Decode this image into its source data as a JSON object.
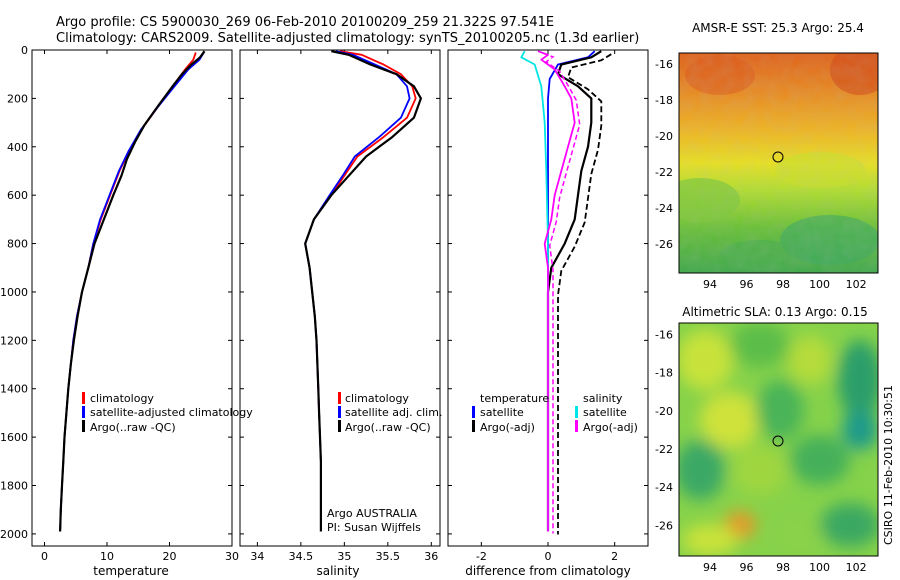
{
  "header": {
    "line1": "Argo profile: CS 5900030_269 06-Feb-2010 20100209_259 21.322S 97.541E",
    "line2": "Climatology: CARS2009. Satellite-adjusted climatology: synTS_20100205.nc (1.3d earlier)"
  },
  "side_label": "CSIRO 11-Feb-2010 10:30:51",
  "colors": {
    "climatology": "#ff0000",
    "satellite": "#0000ff",
    "argo": "#000000",
    "salinity_satellite": "#00e5e5",
    "salinity_argo": "#ff00ff"
  },
  "chart_data": [
    {
      "type": "line",
      "id": "temperature",
      "xlabel": "temperature",
      "ylabel": "",
      "xlim": [
        -2,
        30
      ],
      "ylim": [
        2050,
        0
      ],
      "x_ticks": [
        0,
        10,
        20,
        30
      ],
      "y_ticks": [
        0,
        200,
        400,
        600,
        800,
        1000,
        1200,
        1400,
        1600,
        1800,
        2000
      ],
      "legend": [
        "climatology",
        "satellite-adjusted climatology",
        "Argo(..raw -QC)"
      ],
      "legend_position": "lower-middle",
      "series": [
        {
          "name": "climatology",
          "color": "#ff0000",
          "points": [
            [
              24.2,
              10
            ],
            [
              23.8,
              40
            ],
            [
              22.5,
              80
            ],
            [
              20.5,
              150
            ],
            [
              18,
              240
            ],
            [
              15.5,
              330
            ],
            [
              13.5,
              420
            ],
            [
              12,
              500
            ],
            [
              10.5,
              600
            ],
            [
              9,
              700
            ],
            [
              7.8,
              800
            ],
            [
              7,
              900
            ],
            [
              6,
              1000
            ],
            [
              5.2,
              1100
            ],
            [
              4.6,
              1200
            ],
            [
              4.2,
              1300
            ],
            [
              3.8,
              1400
            ],
            [
              3.5,
              1500
            ],
            [
              3.2,
              1600
            ],
            [
              3,
              1700
            ],
            [
              2.8,
              1800
            ],
            [
              2.6,
              1900
            ],
            [
              2.5,
              1990
            ]
          ]
        },
        {
          "name": "satellite-adjusted climatology",
          "color": "#0000ff",
          "points": [
            [
              25.5,
              10
            ],
            [
              24.8,
              40
            ],
            [
              23,
              80
            ],
            [
              20.8,
              150
            ],
            [
              18,
              240
            ],
            [
              15.4,
              330
            ],
            [
              13.4,
              420
            ],
            [
              11.9,
              500
            ],
            [
              10.4,
              600
            ],
            [
              8.9,
              700
            ],
            [
              7.8,
              800
            ],
            [
              7,
              900
            ],
            [
              6,
              1000
            ],
            [
              5.2,
              1100
            ],
            [
              4.6,
              1200
            ],
            [
              4.2,
              1300
            ],
            [
              3.8,
              1400
            ],
            [
              3.5,
              1500
            ],
            [
              3.2,
              1600
            ],
            [
              3,
              1700
            ],
            [
              2.8,
              1800
            ],
            [
              2.6,
              1900
            ],
            [
              2.5,
              1990
            ]
          ]
        },
        {
          "name": "Argo(..raw -QC)",
          "color": "#000000",
          "points": [
            [
              25.6,
              5
            ],
            [
              24.9,
              30
            ],
            [
              23.5,
              60
            ],
            [
              22,
              100
            ],
            [
              20.5,
              150
            ],
            [
              18.2,
              230
            ],
            [
              16,
              310
            ],
            [
              14.5,
              380
            ],
            [
              13.2,
              450
            ],
            [
              12.3,
              520
            ],
            [
              11,
              600
            ],
            [
              9.5,
              700
            ],
            [
              8,
              800
            ],
            [
              7,
              900
            ],
            [
              6,
              1000
            ],
            [
              5.3,
              1100
            ],
            [
              4.7,
              1200
            ],
            [
              4.2,
              1300
            ],
            [
              3.8,
              1400
            ],
            [
              3.5,
              1500
            ],
            [
              3.2,
              1600
            ],
            [
              3,
              1700
            ],
            [
              2.8,
              1800
            ],
            [
              2.6,
              1900
            ],
            [
              2.5,
              1990
            ]
          ]
        }
      ]
    },
    {
      "type": "line",
      "id": "salinity",
      "xlabel": "salinity",
      "xlim": [
        33.8,
        36.1
      ],
      "ylim": [
        2050,
        0
      ],
      "x_ticks": [
        34,
        34.5,
        35,
        35.5,
        36
      ],
      "legend": [
        "climatology",
        "satellite adj. clim.",
        "Argo(..raw -QC)"
      ],
      "legend_position": "lower-right",
      "annotation": [
        "Argo AUSTRALIA",
        "PI: Susan Wijffels"
      ],
      "series": [
        {
          "name": "climatology",
          "color": "#ff0000",
          "points": [
            [
              34.95,
              5
            ],
            [
              35.2,
              20
            ],
            [
              35.45,
              60
            ],
            [
              35.65,
              100
            ],
            [
              35.78,
              150
            ],
            [
              35.82,
              200
            ],
            [
              35.72,
              280
            ],
            [
              35.45,
              360
            ],
            [
              35.15,
              440
            ],
            [
              35,
              520
            ],
            [
              34.85,
              600
            ],
            [
              34.65,
              700
            ],
            [
              34.55,
              800
            ],
            [
              34.6,
              900
            ],
            [
              34.63,
              1000
            ],
            [
              34.66,
              1100
            ],
            [
              34.68,
              1200
            ],
            [
              34.69,
              1300
            ],
            [
              34.7,
              1400
            ],
            [
              34.71,
              1500
            ],
            [
              34.72,
              1600
            ],
            [
              34.73,
              1700
            ],
            [
              34.73,
              1800
            ],
            [
              34.73,
              1900
            ],
            [
              34.73,
              1990
            ]
          ]
        },
        {
          "name": "satellite adj. clim.",
          "color": "#0000ff",
          "points": [
            [
              34.9,
              5
            ],
            [
              35.1,
              20
            ],
            [
              35.35,
              60
            ],
            [
              35.6,
              100
            ],
            [
              35.72,
              150
            ],
            [
              35.75,
              200
            ],
            [
              35.65,
              280
            ],
            [
              35.4,
              360
            ],
            [
              35.12,
              440
            ],
            [
              34.98,
              520
            ],
            [
              34.83,
              600
            ],
            [
              34.65,
              700
            ],
            [
              34.55,
              800
            ],
            [
              34.6,
              900
            ],
            [
              34.63,
              1000
            ],
            [
              34.66,
              1100
            ],
            [
              34.68,
              1200
            ],
            [
              34.69,
              1300
            ],
            [
              34.7,
              1400
            ],
            [
              34.71,
              1500
            ],
            [
              34.72,
              1600
            ],
            [
              34.73,
              1700
            ],
            [
              34.73,
              1800
            ],
            [
              34.73,
              1900
            ],
            [
              34.73,
              1990
            ]
          ]
        },
        {
          "name": "Argo(..raw -QC)",
          "color": "#000000",
          "points": [
            [
              34.85,
              5
            ],
            [
              35.05,
              20
            ],
            [
              35.3,
              60
            ],
            [
              35.6,
              100
            ],
            [
              35.8,
              150
            ],
            [
              35.88,
              200
            ],
            [
              35.8,
              280
            ],
            [
              35.55,
              360
            ],
            [
              35.25,
              440
            ],
            [
              35.05,
              520
            ],
            [
              34.85,
              600
            ],
            [
              34.65,
              700
            ],
            [
              34.55,
              800
            ],
            [
              34.6,
              900
            ],
            [
              34.63,
              1000
            ],
            [
              34.66,
              1100
            ],
            [
              34.68,
              1200
            ],
            [
              34.69,
              1300
            ],
            [
              34.7,
              1400
            ],
            [
              34.71,
              1500
            ],
            [
              34.72,
              1600
            ],
            [
              34.73,
              1700
            ],
            [
              34.73,
              1800
            ],
            [
              34.73,
              1900
            ],
            [
              34.73,
              1990
            ]
          ]
        }
      ]
    },
    {
      "type": "line",
      "id": "difference",
      "xlabel": "difference from climatology",
      "xlim": [
        -3,
        3
      ],
      "ylim": [
        2050,
        0
      ],
      "x_ticks": [
        -2,
        0,
        2
      ],
      "legend_groups": [
        {
          "title": "temperature",
          "items": [
            "satellite",
            "Argo(-adj)"
          ]
        },
        {
          "title": "salinity",
          "items": [
            "satellite",
            "Argo(-adj)"
          ]
        }
      ],
      "legend_position": "middle",
      "series": [
        {
          "name": "temperature satellite",
          "color": "#0000ff",
          "points": [
            [
              1.4,
              5
            ],
            [
              1.2,
              30
            ],
            [
              0.3,
              60
            ],
            [
              0.05,
              120
            ],
            [
              0,
              200
            ],
            [
              0,
              400
            ],
            [
              0,
              800
            ],
            [
              0,
              1200
            ],
            [
              0,
              1600
            ],
            [
              0,
              1990
            ]
          ]
        },
        {
          "name": "temperature Argo(-adj)",
          "color": "#000000",
          "points": [
            [
              1.6,
              5
            ],
            [
              1.3,
              30
            ],
            [
              0.4,
              60
            ],
            [
              0.3,
              100
            ],
            [
              0.9,
              150
            ],
            [
              1.3,
              200
            ],
            [
              1.3,
              300
            ],
            [
              1.2,
              400
            ],
            [
              1,
              500
            ],
            [
              0.9,
              600
            ],
            [
              0.8,
              700
            ],
            [
              0.5,
              800
            ],
            [
              0.1,
              900
            ],
            [
              0,
              1000
            ],
            [
              0,
              1200
            ],
            [
              0,
              1400
            ],
            [
              0,
              1600
            ],
            [
              0,
              1800
            ],
            [
              0,
              1990
            ]
          ]
        },
        {
          "name": "salinity satellite",
          "color": "#00e5e5",
          "points": [
            [
              -0.7,
              5
            ],
            [
              -0.8,
              30
            ],
            [
              -0.4,
              60
            ],
            [
              -0.2,
              150
            ],
            [
              -0.1,
              300
            ],
            [
              -0.05,
              500
            ],
            [
              0,
              800
            ],
            [
              0,
              1200
            ],
            [
              0,
              1600
            ],
            [
              0,
              1990
            ]
          ]
        },
        {
          "name": "salinity Argo(-adj)",
          "color": "#ff00ff",
          "points": [
            [
              -0.3,
              5
            ],
            [
              0,
              20
            ],
            [
              -0.2,
              40
            ],
            [
              0.2,
              80
            ],
            [
              0.5,
              150
            ],
            [
              0.7,
              200
            ],
            [
              0.8,
              300
            ],
            [
              0.6,
              400
            ],
            [
              0.4,
              500
            ],
            [
              0.2,
              600
            ],
            [
              0.1,
              700
            ],
            [
              -0.1,
              800
            ],
            [
              0,
              900
            ],
            [
              0,
              1000
            ],
            [
              0,
              1200
            ],
            [
              0,
              1600
            ],
            [
              0,
              1990
            ]
          ]
        }
      ]
    }
  ],
  "maps": [
    {
      "id": "sst-map",
      "title": "AMSR-E SST: 25.3 Argo: 25.4",
      "x_ticks": [
        "94",
        "96",
        "98",
        "100",
        "102"
      ],
      "y_ticks": [
        "-16",
        "-18",
        "-20",
        "-22",
        "-24",
        "-26"
      ],
      "marker": {
        "lon": 97.5,
        "lat": -21.3
      }
    },
    {
      "id": "sla-map",
      "title": "Altimetric SLA: 0.13 Argo: 0.15",
      "x_ticks": [
        "94",
        "96",
        "98",
        "100",
        "102"
      ],
      "y_ticks": [
        "-16",
        "-18",
        "-20",
        "-22",
        "-24",
        "-26"
      ],
      "marker": {
        "lon": 97.5,
        "lat": -21.3
      }
    }
  ]
}
